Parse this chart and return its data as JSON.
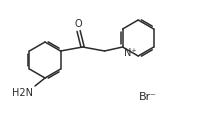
{
  "bg_color": "#ffffff",
  "line_color": "#2b2b2b",
  "line_width": 1.1,
  "font_size": 7.0,
  "label_H2N": "H2N",
  "label_O": "O",
  "label_N_plus": "N⁺",
  "label_Br_minus": "Br⁻",
  "ring_r": 18,
  "pyr_r": 18
}
